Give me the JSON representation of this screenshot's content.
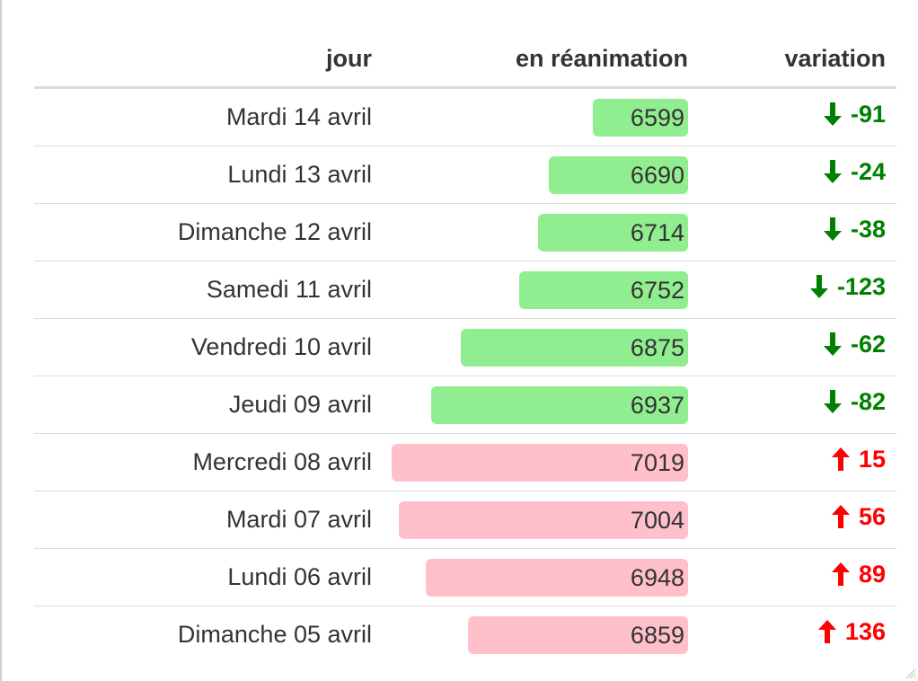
{
  "colors": {
    "decrease_bar": "#90ee90",
    "increase_bar": "#ffc0cb",
    "decrease_text": "#008000",
    "increase_text": "#ff0000"
  },
  "table": {
    "headers": {
      "jour": "jour",
      "reanimation": "en réanimation",
      "variation": "variation"
    },
    "bar_scale": {
      "min": 6400,
      "max": 7019
    },
    "rows": [
      {
        "jour": "Mardi 14 avril",
        "reanimation": 6599,
        "reanimation_text": "6599",
        "variation_text": "-91",
        "direction": "down",
        "arrow_icon": "arrow-down-icon"
      },
      {
        "jour": "Lundi 13 avril",
        "reanimation": 6690,
        "reanimation_text": "6690",
        "variation_text": "-24",
        "direction": "down",
        "arrow_icon": "arrow-down-icon"
      },
      {
        "jour": "Dimanche 12 avril",
        "reanimation": 6714,
        "reanimation_text": "6714",
        "variation_text": "-38",
        "direction": "down",
        "arrow_icon": "arrow-down-icon"
      },
      {
        "jour": "Samedi 11 avril",
        "reanimation": 6752,
        "reanimation_text": "6752",
        "variation_text": "-123",
        "direction": "down",
        "arrow_icon": "arrow-down-icon"
      },
      {
        "jour": "Vendredi 10 avril",
        "reanimation": 6875,
        "reanimation_text": "6875",
        "variation_text": "-62",
        "direction": "down",
        "arrow_icon": "arrow-down-icon"
      },
      {
        "jour": "Jeudi 09 avril",
        "reanimation": 6937,
        "reanimation_text": "6937",
        "variation_text": "-82",
        "direction": "down",
        "arrow_icon": "arrow-down-icon"
      },
      {
        "jour": "Mercredi 08 avril",
        "reanimation": 7019,
        "reanimation_text": "7019",
        "variation_text": "15",
        "direction": "up",
        "arrow_icon": "arrow-up-icon"
      },
      {
        "jour": "Mardi 07 avril",
        "reanimation": 7004,
        "reanimation_text": "7004",
        "variation_text": "56",
        "direction": "up",
        "arrow_icon": "arrow-up-icon"
      },
      {
        "jour": "Lundi 06 avril",
        "reanimation": 6948,
        "reanimation_text": "6948",
        "variation_text": "89",
        "direction": "up",
        "arrow_icon": "arrow-up-icon"
      },
      {
        "jour": "Dimanche 05 avril",
        "reanimation": 6859,
        "reanimation_text": "6859",
        "variation_text": "136",
        "direction": "up",
        "arrow_icon": "arrow-up-icon"
      }
    ]
  }
}
